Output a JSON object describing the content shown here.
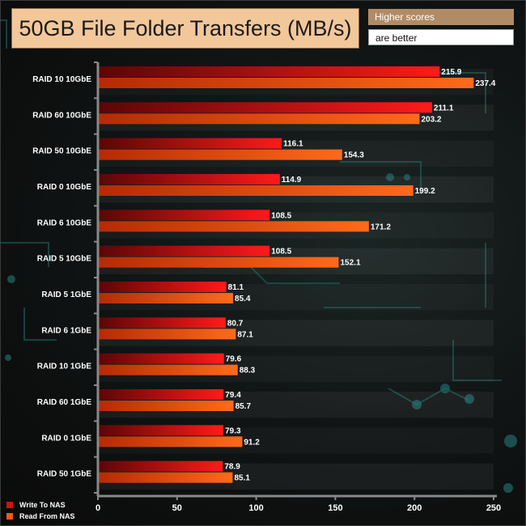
{
  "header": {
    "title": "50GB File Folder Transfers (MB/s)",
    "note_line1": "Higher scores",
    "note_line2": "are better"
  },
  "chart_data": {
    "type": "bar",
    "orientation": "horizontal",
    "title": "50GB File Folder Transfers (MB/s)",
    "categories": [
      "RAID 10 10GbE",
      "RAID 60 10GbE",
      "RAID 50 10GbE",
      "RAID 0 10GbE",
      "RAID 6 10GbE",
      "RAID 5 10GbE",
      "RAID 5 1GbE",
      "RAID 6 1GbE",
      "RAID 10 1GbE",
      "RAID 60 1GbE",
      "RAID 0 1GbE",
      "RAID 50 1GbE"
    ],
    "series": [
      {
        "name": "Write To NAS",
        "color": "#d41010",
        "values": [
          215.9,
          211.1,
          116.1,
          114.9,
          108.5,
          108.5,
          81.1,
          80.7,
          79.6,
          79.4,
          79.3,
          78.9
        ]
      },
      {
        "name": "Read From NAS",
        "color": "#f05a12",
        "values": [
          237.4,
          203.2,
          154.3,
          199.2,
          171.2,
          152.1,
          85.4,
          87.1,
          88.3,
          85.7,
          91.2,
          85.1
        ]
      }
    ],
    "xlim": [
      0,
      250
    ],
    "xticks": [
      0,
      50,
      100,
      150,
      200,
      250
    ],
    "legend_position": "bottom-left",
    "grid": false
  }
}
